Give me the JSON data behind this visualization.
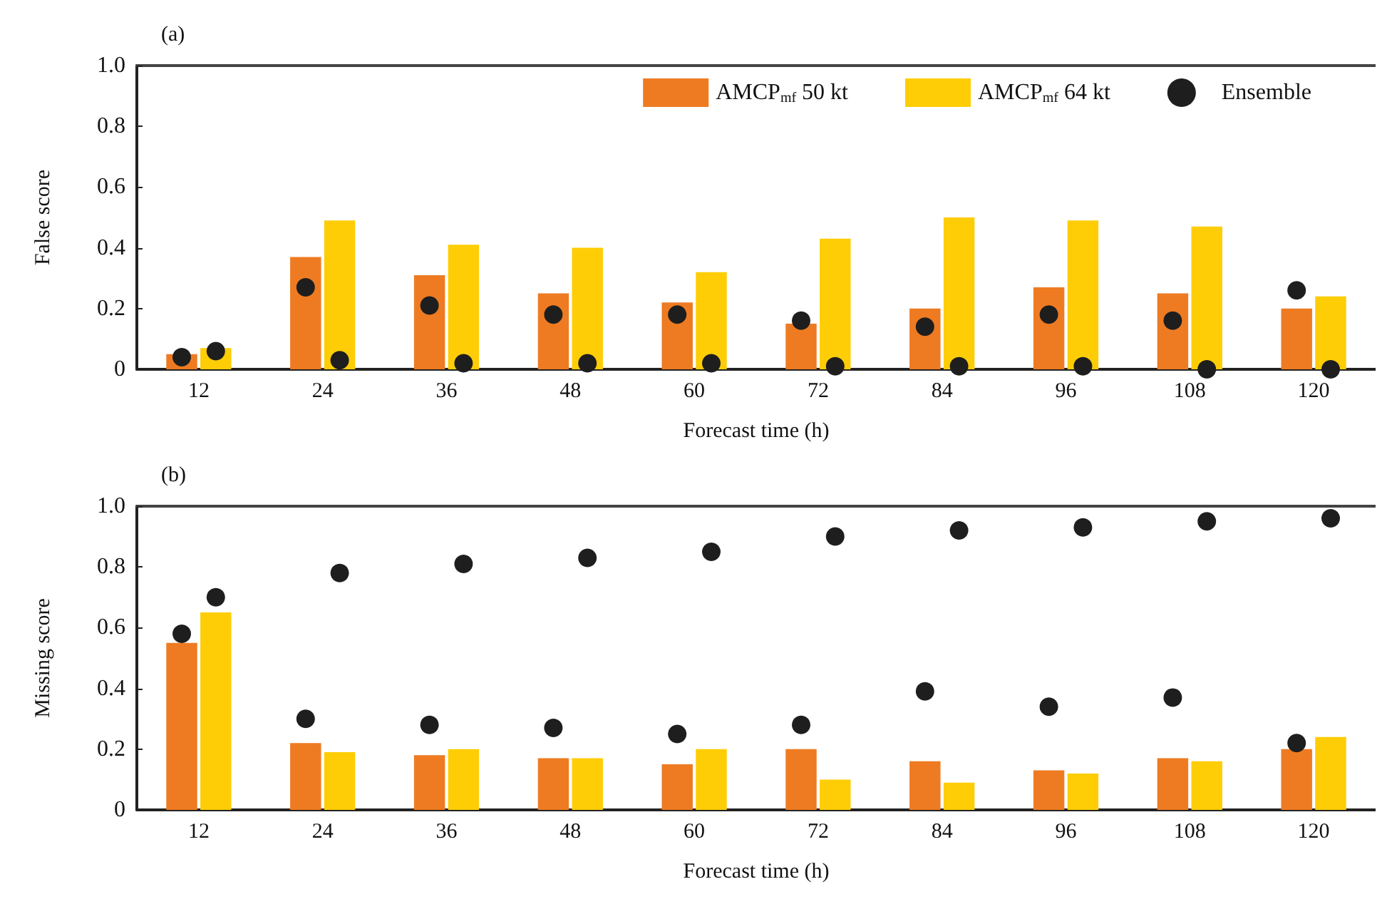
{
  "chart_data": [
    {
      "type": "bar",
      "title": "(a)",
      "xlabel": "Forecast time (h)",
      "ylabel": "False score",
      "categories": [
        "12",
        "24",
        "36",
        "48",
        "60",
        "72",
        "84",
        "96",
        "108",
        "120"
      ],
      "series": [
        {
          "name": "AMCP$_{mf}$ 50 kt",
          "color": "#ee7b22",
          "values": [
            0.05,
            0.37,
            0.31,
            0.25,
            0.22,
            0.15,
            0.2,
            0.27,
            0.25,
            0.2
          ]
        },
        {
          "name": "AMCP$_{mf}$ 64 kt",
          "color": "#fecd06",
          "values": [
            0.07,
            0.49,
            0.41,
            0.4,
            0.32,
            0.43,
            0.5,
            0.49,
            0.47,
            0.24
          ]
        },
        {
          "name": "Ensemble",
          "type": "scatter",
          "color": "#1e1e1e",
          "x": [
            "12",
            "24",
            "36",
            "48",
            "60",
            "72",
            "84",
            "96",
            "108",
            "120"
          ],
          "values": [
            0.04,
            0.27,
            0.21,
            0.18,
            0.18,
            0.16,
            0.14,
            0.18,
            0.16,
            0.26
          ]
        },
        {
          "type": "scatter",
          "color": "#1e1e1e",
          "x": [
            "12",
            "24",
            "36",
            "48",
            "60",
            "72",
            "84",
            "96",
            "108",
            "120"
          ],
          "values": [
            0.06,
            0.03,
            0.02,
            0.02,
            0.02,
            0.01,
            0.01,
            0.01,
            0.0,
            0.0
          ]
        }
      ],
      "ylim": [
        0,
        1
      ],
      "yticks": [
        0,
        0.2,
        0.4,
        0.6,
        0.8,
        {
          "value": 1,
          "label": "1.0"
        }
      ],
      "grid": false,
      "legend": "top right",
      "marker": "circle"
    },
    {
      "type": "bar",
      "title": "(b)",
      "xlabel": "Forecast time (h)",
      "ylabel": "Missing score",
      "categories": [
        "12",
        "24",
        "36",
        "48",
        "60",
        "72",
        "84",
        "96",
        "108",
        "120"
      ],
      "series": [
        {
          "color": "#ee7b22",
          "values": [
            0.55,
            0.22,
            0.18,
            0.17,
            0.15,
            0.2,
            0.16,
            0.13,
            0.17,
            0.2
          ]
        },
        {
          "color": "#fecd06",
          "values": [
            0.65,
            0.19,
            0.2,
            0.17,
            0.2,
            0.1,
            0.09,
            0.12,
            0.16,
            0.24
          ]
        },
        {
          "type": "scatter",
          "color": "#1e1e1e",
          "x": [
            "12",
            "24",
            "36",
            "48",
            "60",
            "72",
            "84",
            "96",
            "108",
            "120"
          ],
          "values": [
            0.58,
            0.3,
            0.28,
            0.27,
            0.25,
            0.28,
            0.39,
            0.34,
            0.37,
            0.22
          ]
        },
        {
          "type": "scatter",
          "color": "#1e1e1e",
          "x": [
            "12",
            "24",
            "36",
            "48",
            "60",
            "72",
            "84",
            "96",
            "108",
            "120"
          ],
          "values": [
            0.7,
            0.78,
            0.81,
            0.83,
            0.85,
            0.9,
            0.92,
            0.93,
            0.95,
            0.96
          ]
        }
      ],
      "ylim": [
        0,
        1
      ],
      "yticks": [
        0,
        0.2,
        0.4,
        0.6,
        0.8,
        {
          "value": 1,
          "label": "1.0"
        }
      ],
      "grid": false,
      "legend": false,
      "marker": "circle"
    }
  ]
}
